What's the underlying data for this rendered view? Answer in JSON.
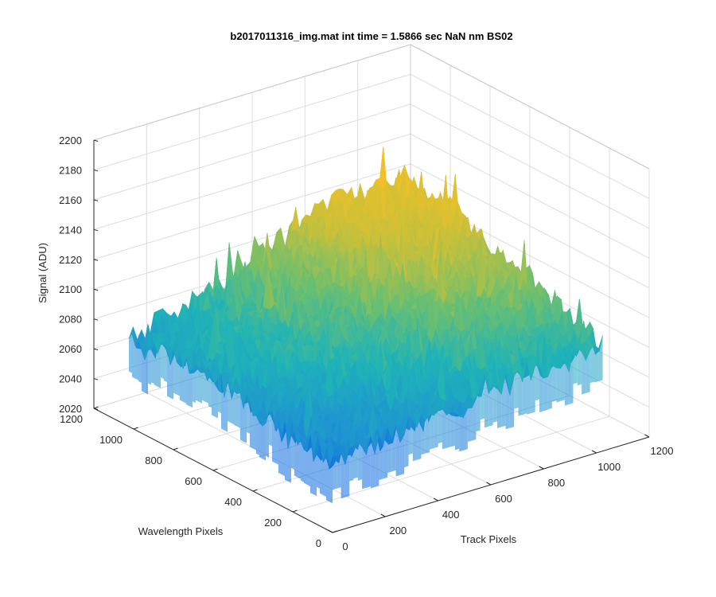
{
  "chart_data": {
    "type": "surface",
    "title": "b2017011316_img.mat int time = 1.5866 sec  NaN nm BS02",
    "xlabel": "Track Pixels",
    "ylabel": "Wavelength Pixels",
    "zlabel": "Signal (ADU)",
    "xlim": [
      0,
      1200
    ],
    "ylim": [
      0,
      1200
    ],
    "zlim": [
      2020,
      2200
    ],
    "x_ticks": [
      "0",
      "200",
      "400",
      "600",
      "800",
      "1000",
      "1200"
    ],
    "y_ticks": [
      "0",
      "200",
      "400",
      "600",
      "800",
      "1000",
      "1200"
    ],
    "z_ticks": [
      "2020",
      "2040",
      "2060",
      "2080",
      "2100",
      "2120",
      "2140",
      "2160",
      "2180",
      "2200"
    ],
    "grid": true,
    "colormap": [
      "#0c6be0",
      "#1f93d2",
      "#1fb3b8",
      "#6cbf6f",
      "#c8c03a",
      "#f2c026"
    ],
    "surface_extent": {
      "x": [
        0,
        1024
      ],
      "y": [
        0,
        1024
      ]
    },
    "surface_samples": {
      "x": [
        0,
        256,
        512,
        768,
        1024
      ],
      "y": [
        0,
        256,
        512,
        768,
        1024
      ],
      "z": [
        [
          2068,
          2073,
          2080,
          2088,
          2090
        ],
        [
          2072,
          2080,
          2090,
          2100,
          2105
        ],
        [
          2080,
          2090,
          2100,
          2115,
          2118
        ],
        [
          2082,
          2092,
          2108,
          2125,
          2130
        ],
        [
          2078,
          2090,
          2110,
          2130,
          2133
        ]
      ],
      "noise_amplitude": 18
    }
  }
}
